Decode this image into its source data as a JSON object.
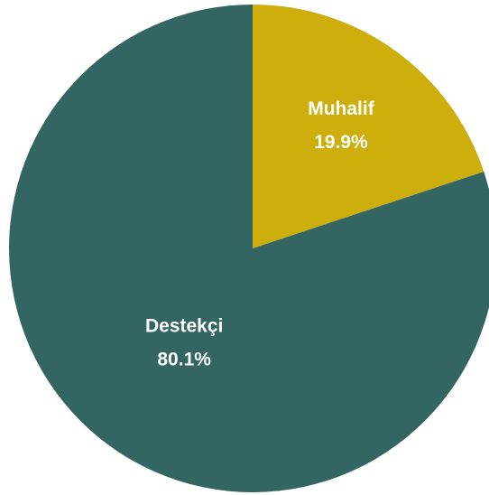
{
  "chart_data": {
    "type": "pie",
    "categories": [
      "Muhalif",
      "Destekçi"
    ],
    "values": [
      19.9,
      80.1
    ],
    "value_labels": [
      "19.9%",
      "80.1%"
    ],
    "colors": [
      "#cdae0c",
      "#336563"
    ]
  }
}
